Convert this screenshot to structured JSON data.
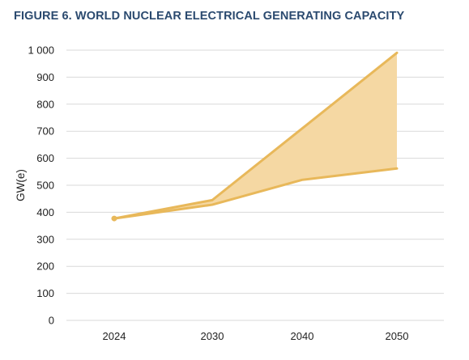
{
  "chart_data": {
    "type": "area",
    "title": "FIGURE 6. WORLD NUCLEAR ELECTRICAL GENERATING CAPACITY",
    "xlabel": "",
    "ylabel": "GW(e)",
    "categories": [
      "2024",
      "2030",
      "2040",
      "2050"
    ],
    "series": [
      {
        "values": [
          377,
          445,
          710,
          990
        ]
      },
      {
        "values": [
          377,
          428,
          520,
          562
        ]
      }
    ],
    "ylim": [
      0,
      1000
    ],
    "yticks": [
      0,
      100,
      200,
      300,
      400,
      500,
      600,
      700,
      800,
      900,
      1000
    ],
    "ytick_labels": [
      "0",
      "100",
      "200",
      "300",
      "400",
      "500",
      "600",
      "700",
      "800",
      "900",
      "1 000"
    ],
    "grid": true,
    "legend": "none",
    "colors": {
      "line": "#e8b85a",
      "fill": "#f5d8a3",
      "grid": "#d9d9d9",
      "title": "#2b4a6f"
    }
  }
}
